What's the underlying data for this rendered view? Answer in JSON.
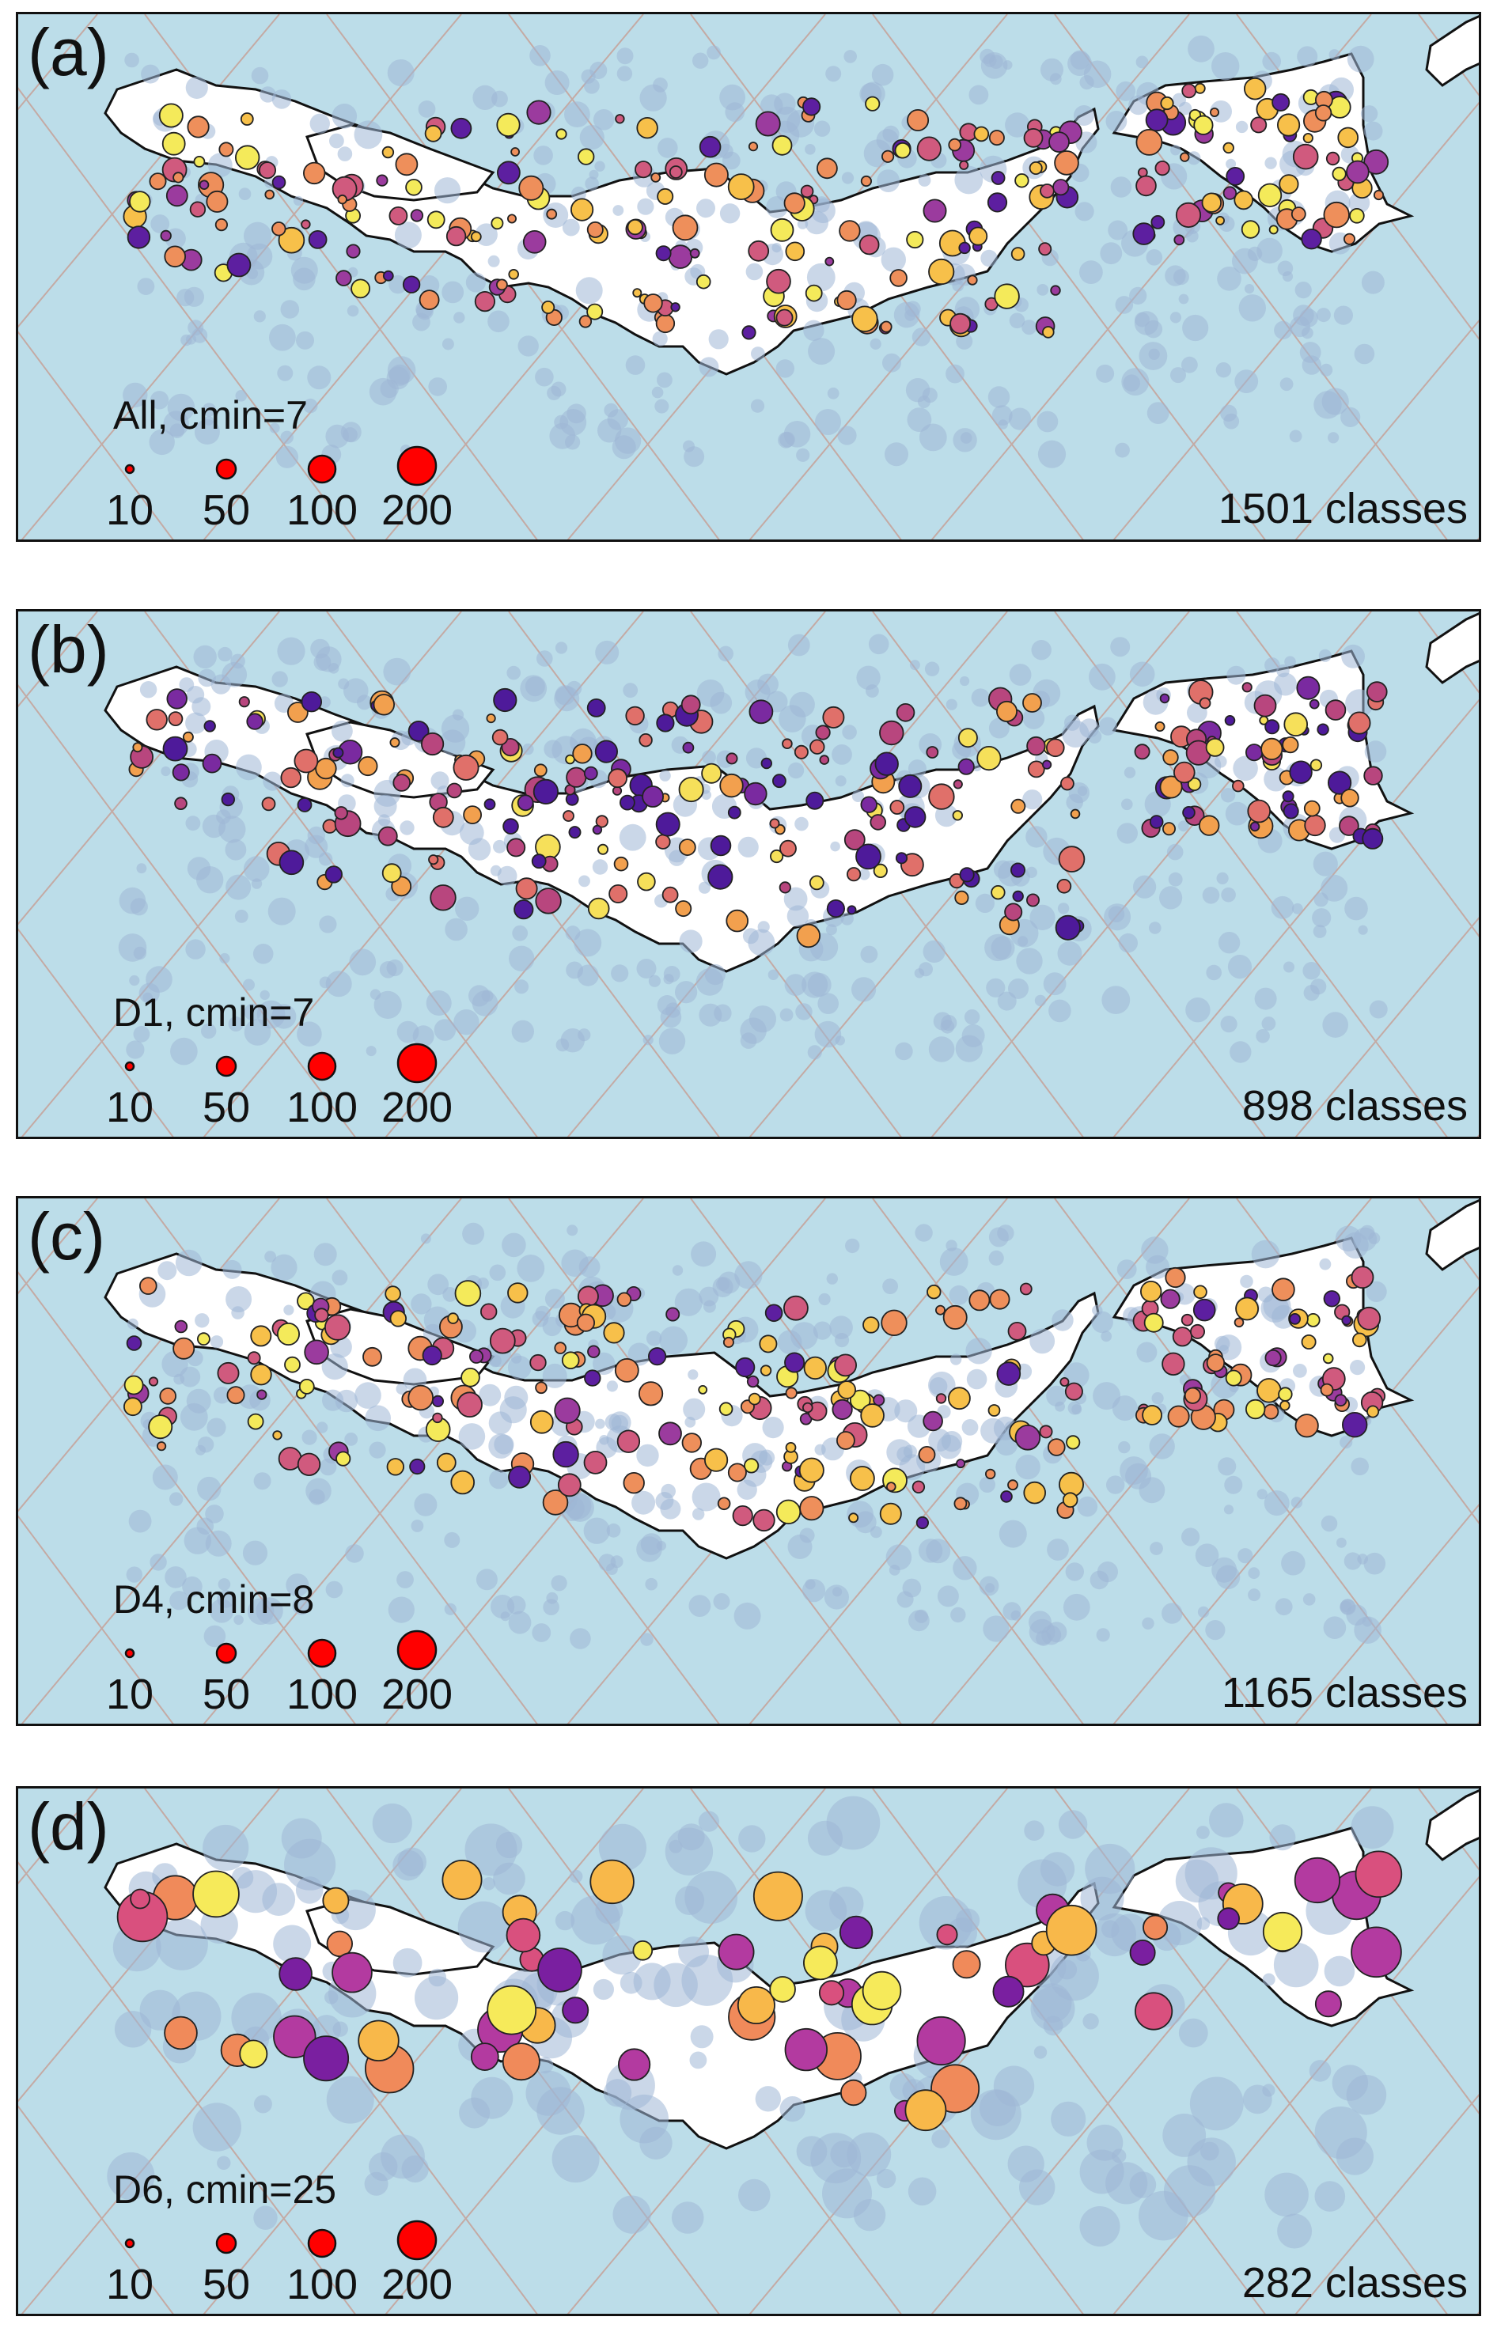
{
  "colors": {
    "sea": "#bcdde9",
    "land": "#ffffff",
    "legend_fill": "#ff0000"
  },
  "legend_sizes": [
    "10",
    "50",
    "100",
    "200"
  ],
  "panels": [
    {
      "label": "(a)",
      "subset": "All, cmin=7",
      "classes": "1501 classes",
      "palette": [
        "#5d1fa0",
        "#9b3b9e",
        "#d05a7e",
        "#ee8f5b",
        "#f7c04a",
        "#f4ea5a"
      ],
      "weights": [
        0.1,
        0.12,
        0.22,
        0.22,
        0.2,
        0.14
      ]
    },
    {
      "label": "(b)",
      "subset": "D1, cmin=7",
      "classes": "898 classes",
      "palette": [
        "#4e1a9a",
        "#7a2aa0",
        "#b8467e",
        "#e0706a",
        "#f2a04e",
        "#f6e05a"
      ],
      "weights": [
        0.25,
        0.12,
        0.2,
        0.2,
        0.15,
        0.08
      ]
    },
    {
      "label": "(c)",
      "subset": "D4, cmin=8",
      "classes": "1165 classes",
      "palette": [
        "#5d1fa0",
        "#9b3b9e",
        "#d05a7e",
        "#ee8f5b",
        "#f7c04a",
        "#f4ea5a"
      ],
      "weights": [
        0.08,
        0.1,
        0.22,
        0.25,
        0.2,
        0.15
      ]
    },
    {
      "label": "(d)",
      "subset": "D6, cmin=25",
      "classes": "282 classes",
      "palette": [
        "#7a1fa0",
        "#b33aa0",
        "#d9507e",
        "#f08a5a",
        "#f8b84a",
        "#f6ea5a"
      ],
      "weights": [
        0.14,
        0.18,
        0.16,
        0.2,
        0.18,
        0.14
      ]
    }
  ]
}
